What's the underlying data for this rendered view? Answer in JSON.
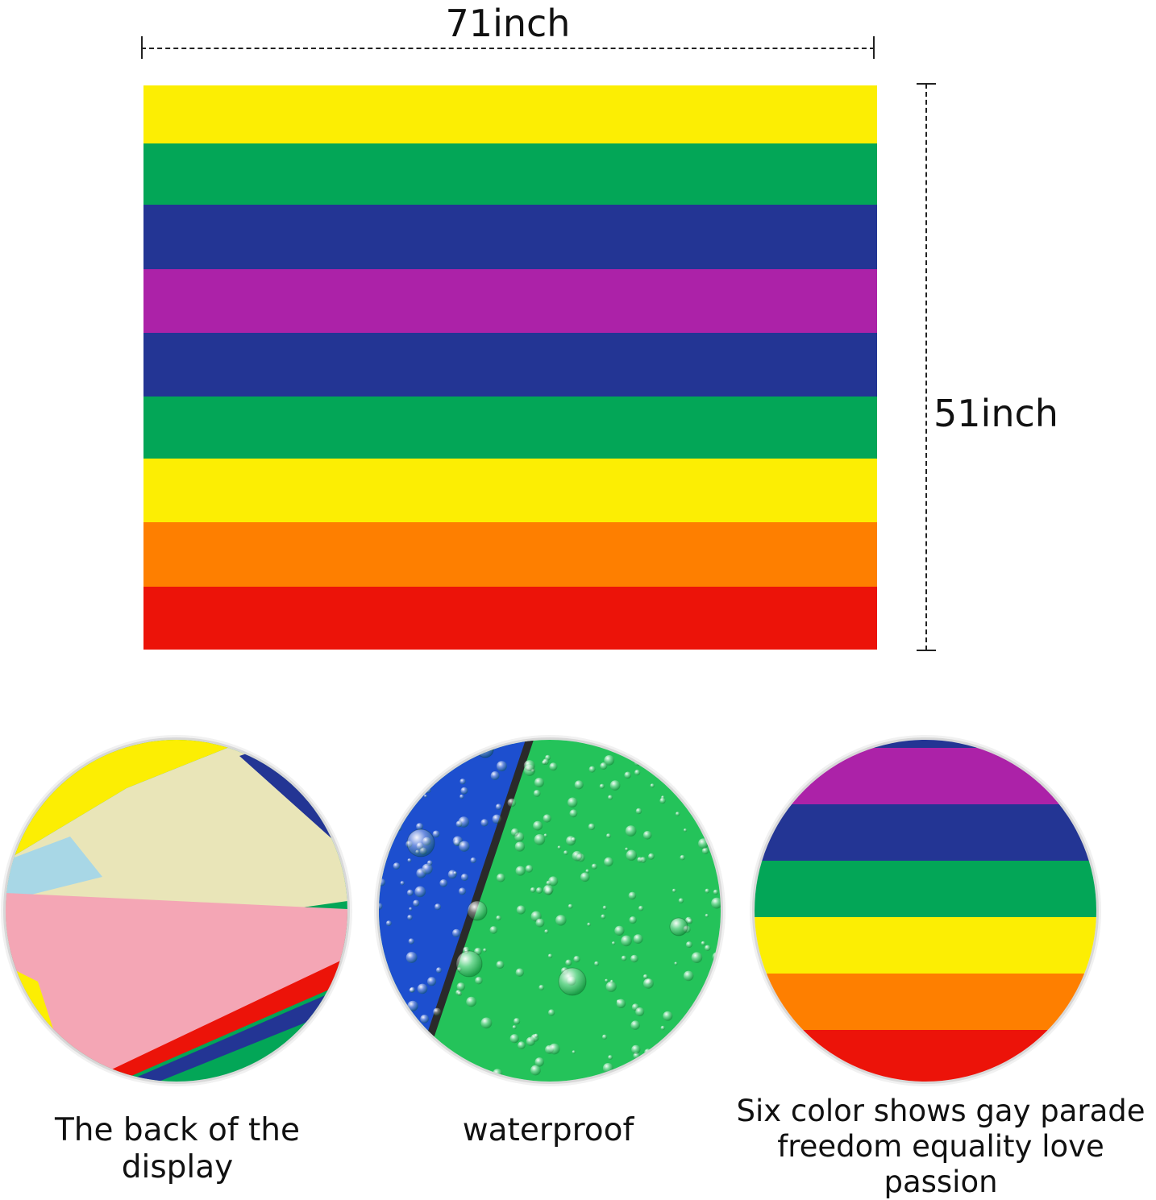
{
  "dimensions": {
    "width_label": "71inch",
    "height_label": "51inch"
  },
  "flag": {
    "stripe_colors": [
      "#fcee03",
      "#03a657",
      "#233594",
      "#ac22a8",
      "#233594",
      "#03a657",
      "#fcee03",
      "#fe7f00",
      "#ec1309"
    ]
  },
  "features": [
    {
      "caption": "The back of the display"
    },
    {
      "caption": "waterproof"
    },
    {
      "caption_line1": "Six color shows gay parade",
      "caption_line2": "freedom equality love passion"
    }
  ],
  "colors": {
    "yellow": "#fcee03",
    "green": "#03a657",
    "blue": "#233594",
    "purple": "#ac22a8",
    "orange": "#fe7f00",
    "red": "#ec1309",
    "water_green": "#24c35a",
    "water_blue": "#1d4fcf"
  }
}
